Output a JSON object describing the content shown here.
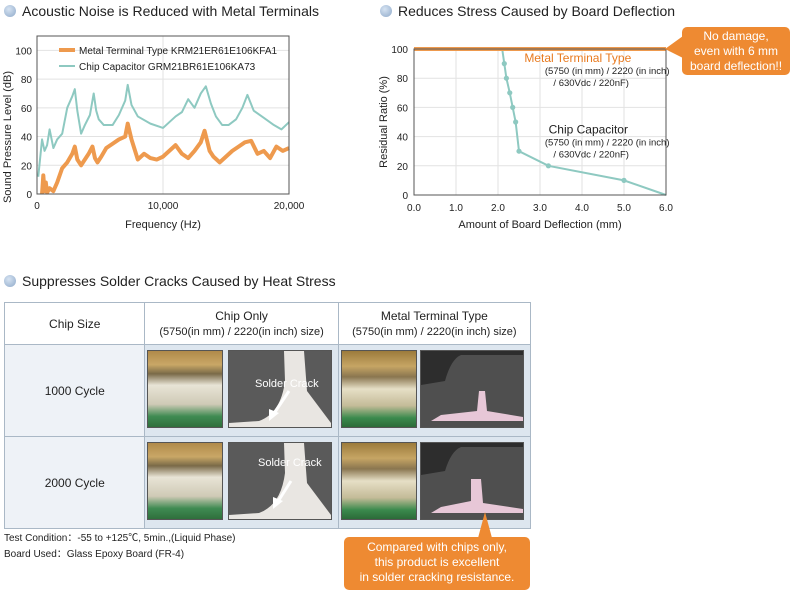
{
  "sections": {
    "noise_title": "Acoustic Noise is Reduced with Metal Terminals",
    "stress_title": "Reduces Stress Caused by Board Deflection",
    "cracks_title": "Suppresses Solder Cracks Caused by Heat Stress"
  },
  "colors": {
    "orange": "#ee9a4e",
    "teal": "#8ec9c1",
    "callout": "#ee8a32",
    "axis": "#555555"
  },
  "chart_data": [
    {
      "type": "line",
      "title": "Acoustic Noise is Reduced with Metal Terminals",
      "xlabel": "Frequency (Hz)",
      "ylabel": "Sound Pressure Level (dB)",
      "xlim": [
        0,
        20000
      ],
      "ylim": [
        0,
        110
      ],
      "xticks": [
        0,
        10000,
        20000
      ],
      "xtick_labels": [
        "0",
        "10,000",
        "20,000"
      ],
      "yticks": [
        0,
        20,
        40,
        60,
        80,
        100
      ],
      "legend": [
        "Metal Terminal Type  KRM21ER61E106KFA1",
        "Chip Capacitor GRM21BR61E106KA73"
      ],
      "series": [
        {
          "name": "Metal Terminal Type  KRM21ER61E106KFA1",
          "color": "#ee9a4e",
          "x": [
            400,
            500,
            600,
            700,
            800,
            1000,
            1300,
            1600,
            2000,
            2400,
            2800,
            3000,
            3200,
            3500,
            3800,
            4100,
            4400,
            4600,
            4800,
            5100,
            5500,
            6000,
            6500,
            7000,
            7200,
            7500,
            8000,
            8500,
            9000,
            9500,
            10000,
            10500,
            11000,
            11500,
            12000,
            12500,
            13000,
            13300,
            13700,
            14000,
            14500,
            15000,
            15500,
            16000,
            16500,
            17000,
            17500,
            18000,
            18500,
            19000,
            19500,
            20000
          ],
          "y": [
            0,
            13,
            2,
            8,
            1,
            4,
            2,
            8,
            18,
            22,
            28,
            33,
            24,
            20,
            24,
            28,
            33,
            25,
            22,
            26,
            32,
            35,
            38,
            40,
            49,
            38,
            24,
            28,
            25,
            24,
            26,
            30,
            34,
            28,
            25,
            30,
            36,
            44,
            30,
            26,
            22,
            26,
            30,
            33,
            36,
            37,
            28,
            30,
            25,
            33,
            30,
            32
          ]
        },
        {
          "name": "Chip Capacitor GRM21BR61E106KA73",
          "color": "#8ec9c1",
          "x": [
            100,
            400,
            600,
            800,
            1000,
            1300,
            1600,
            2000,
            2400,
            2800,
            3000,
            3200,
            3500,
            3800,
            4200,
            4500,
            4700,
            4900,
            5300,
            6000,
            6500,
            7000,
            7200,
            7500,
            8000,
            9000,
            10000,
            10500,
            11000,
            11500,
            12000,
            12500,
            13000,
            13400,
            13800,
            14200,
            14700,
            15200,
            15800,
            16300,
            16700,
            17200,
            18000,
            18800,
            19400,
            20000
          ],
          "y": [
            12,
            38,
            30,
            34,
            45,
            32,
            38,
            42,
            60,
            68,
            73,
            58,
            42,
            48,
            55,
            70,
            58,
            52,
            48,
            48,
            55,
            65,
            76,
            62,
            54,
            49,
            46,
            50,
            54,
            57,
            66,
            60,
            70,
            75,
            63,
            54,
            48,
            48,
            52,
            60,
            69,
            58,
            53,
            48,
            45,
            50
          ]
        }
      ]
    },
    {
      "type": "line",
      "title": "Reduces Stress Caused by Board Deflection",
      "xlabel": "Amount of Board Deflection (mm)",
      "ylabel": "Residual Ratio (%)",
      "xlim": [
        0,
        6
      ],
      "ylim": [
        0,
        100
      ],
      "xticks": [
        0,
        1,
        2,
        3,
        4,
        5,
        6
      ],
      "xtick_labels": [
        "0.0",
        "1.0",
        "2.0",
        "3.0",
        "4.0",
        "5.0",
        "6.0"
      ],
      "yticks": [
        0,
        20,
        40,
        60,
        80,
        100
      ],
      "series": [
        {
          "name": "Metal Terminal Type",
          "spec": [
            "(5750 (in mm) / 2220 (in inch)",
            "/ 630Vdc / 220nF)"
          ],
          "color": "#ee9a4e",
          "x": [
            0,
            6.0
          ],
          "y": [
            100,
            100
          ]
        },
        {
          "name": "Chip Capacitor",
          "spec": [
            "(5750 (in mm) / 2220 (in inch)",
            "/ 630Vdc / 220nF)"
          ],
          "color": "#8ec9c1",
          "x": [
            2.1,
            2.15,
            2.2,
            2.28,
            2.35,
            2.42,
            2.5,
            3.2,
            5.0,
            6.0
          ],
          "y": [
            100,
            90,
            80,
            70,
            60,
            50,
            30,
            20,
            10,
            0
          ],
          "markers_x": [
            2.15,
            2.2,
            2.28,
            2.35,
            2.42,
            2.5,
            3.2,
            5.0
          ],
          "markers_y": [
            90,
            80,
            70,
            60,
            50,
            30,
            20,
            10
          ]
        }
      ],
      "annotation": "No damage,\neven with 6 mm\nboard deflection!!"
    }
  ],
  "table": {
    "col_header": "Chip Size",
    "col_chip": "Chip Only",
    "col_chip_sub": "(5750(in mm) / 2220(in inch) size)",
    "col_metal": "Metal Terminal Type",
    "col_metal_sub": "(5750(in mm) / 2220(in inch) size)",
    "rows": [
      "1000 Cycle",
      "2000 Cycle"
    ],
    "crack_label": "Solder Crack"
  },
  "test_condition": "Test Condition：-55 to +125℃, 5min.,(Liquid Phase)",
  "board_used": "Board Used：Glass Epoxy Board (FR-4)",
  "callout_cracks": "Compared with chips only,\nthis product is excellent\nin solder cracking resistance."
}
